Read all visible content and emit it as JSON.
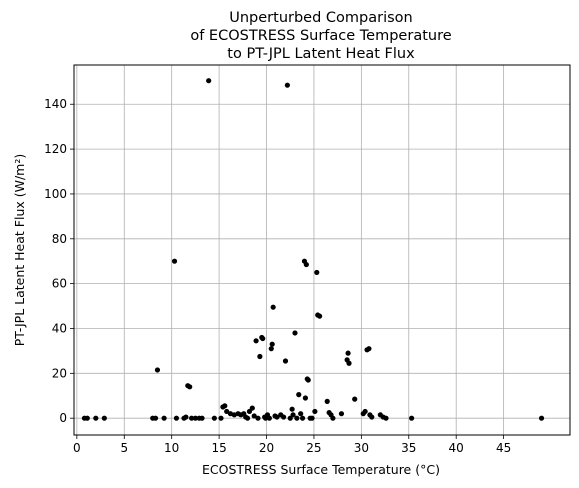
{
  "chart_data": {
    "type": "scatter",
    "title_lines": [
      "Unperturbed Comparison",
      "of ECOSTRESS Surface Temperature",
      "to PT-JPL Latent Heat Flux"
    ],
    "xlabel": "ECOSTRESS Surface Temperature (°C)",
    "ylabel": "PT-JPL Latent Heat Flux (W/m²)",
    "xlim": [
      -0.3,
      52.0
    ],
    "ylim": [
      -7.5,
      157.5
    ],
    "xticks": [
      0,
      5,
      10,
      15,
      20,
      25,
      30,
      35,
      40,
      45
    ],
    "yticks": [
      0,
      20,
      40,
      60,
      80,
      100,
      120,
      140
    ],
    "grid": true,
    "marker_color": "#000000",
    "points": [
      [
        0.8,
        0
      ],
      [
        1.1,
        0
      ],
      [
        2.0,
        0
      ],
      [
        2.9,
        0
      ],
      [
        8.0,
        0
      ],
      [
        8.3,
        0
      ],
      [
        8.5,
        21.5
      ],
      [
        9.2,
        0
      ],
      [
        10.3,
        70
      ],
      [
        10.5,
        0
      ],
      [
        11.3,
        0
      ],
      [
        11.5,
        0.5
      ],
      [
        11.7,
        14.5
      ],
      [
        11.9,
        14
      ],
      [
        12.1,
        0
      ],
      [
        12.5,
        0
      ],
      [
        12.9,
        0
      ],
      [
        13.2,
        0
      ],
      [
        13.9,
        150.5
      ],
      [
        14.5,
        0
      ],
      [
        15.2,
        0
      ],
      [
        15.4,
        5
      ],
      [
        15.6,
        5.5
      ],
      [
        15.8,
        3
      ],
      [
        16.2,
        2
      ],
      [
        16.6,
        1.5
      ],
      [
        17.0,
        2
      ],
      [
        17.3,
        1.5
      ],
      [
        17.6,
        2
      ],
      [
        17.8,
        0.5
      ],
      [
        18.0,
        0
      ],
      [
        18.2,
        3
      ],
      [
        18.5,
        4.5
      ],
      [
        18.7,
        1
      ],
      [
        18.9,
        34.5
      ],
      [
        19.1,
        0
      ],
      [
        19.3,
        27.5
      ],
      [
        19.5,
        36
      ],
      [
        19.6,
        35.5
      ],
      [
        19.8,
        0.5
      ],
      [
        19.9,
        0
      ],
      [
        20.1,
        1.5
      ],
      [
        20.3,
        0
      ],
      [
        20.5,
        31
      ],
      [
        20.6,
        33
      ],
      [
        20.7,
        49.5
      ],
      [
        20.9,
        1
      ],
      [
        21.1,
        0.5
      ],
      [
        21.5,
        1.5
      ],
      [
        21.8,
        0.5
      ],
      [
        22.0,
        25.5
      ],
      [
        22.2,
        148.5
      ],
      [
        22.5,
        0
      ],
      [
        22.7,
        4
      ],
      [
        22.8,
        1.5
      ],
      [
        23.0,
        38
      ],
      [
        23.2,
        0
      ],
      [
        23.4,
        10.5
      ],
      [
        23.6,
        2
      ],
      [
        23.8,
        0
      ],
      [
        24.0,
        70
      ],
      [
        24.1,
        9
      ],
      [
        24.2,
        68.5
      ],
      [
        24.3,
        17.5
      ],
      [
        24.4,
        17
      ],
      [
        24.6,
        0
      ],
      [
        24.8,
        0
      ],
      [
        25.1,
        3
      ],
      [
        25.3,
        65
      ],
      [
        25.4,
        46
      ],
      [
        25.6,
        45.5
      ],
      [
        26.4,
        7.5
      ],
      [
        26.6,
        2.5
      ],
      [
        26.8,
        1.5
      ],
      [
        27.0,
        0
      ],
      [
        27.9,
        2
      ],
      [
        28.5,
        26
      ],
      [
        28.6,
        29
      ],
      [
        28.7,
        24.5
      ],
      [
        29.3,
        8.5
      ],
      [
        30.2,
        2
      ],
      [
        30.4,
        3
      ],
      [
        30.6,
        30.5
      ],
      [
        30.8,
        31
      ],
      [
        30.9,
        1.5
      ],
      [
        31.1,
        0.5
      ],
      [
        32.0,
        1.5
      ],
      [
        32.3,
        0.5
      ],
      [
        32.6,
        0
      ],
      [
        35.3,
        0
      ],
      [
        49.0,
        0
      ]
    ]
  }
}
